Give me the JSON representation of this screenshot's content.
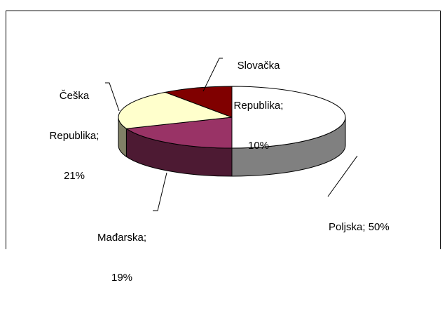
{
  "chart_data": {
    "type": "pie",
    "style": "3d-pie",
    "title": "",
    "legend": "none",
    "categories": [
      "Poljska",
      "Mađarska",
      "Češka Republika",
      "Slovačka Republika"
    ],
    "values": [
      50,
      19,
      21,
      10
    ],
    "colors": [
      "#ffffff",
      "#993366",
      "#ffffcc",
      "#800000"
    ],
    "side_colors": [
      "#808080",
      "#4d1a33",
      "#808066",
      "#400000"
    ],
    "labels": {
      "poljska": [
        "Poljska; 50%"
      ],
      "madarska": [
        "Mađarska;",
        "19%"
      ],
      "ceska": [
        "Češka",
        "Republika;",
        "21%"
      ],
      "slovacka": [
        "Slovačka",
        "Republika;",
        "10%"
      ]
    }
  }
}
